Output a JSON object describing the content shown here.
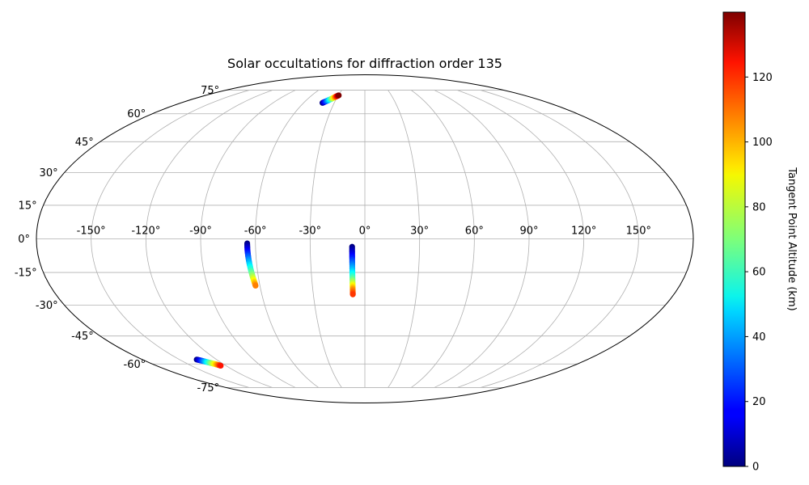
{
  "chart_data": {
    "type": "scatter",
    "projection": "mollweide",
    "title": "Solar occultations for diffraction order 135",
    "xlabel": "",
    "ylabel": "",
    "grid": true,
    "x_ticks": [
      -150,
      -120,
      -90,
      -60,
      -30,
      0,
      30,
      60,
      90,
      120,
      150
    ],
    "x_tick_labels": [
      "-150°",
      "-120°",
      "-90°",
      "-60°",
      "-30°",
      "0°",
      "30°",
      "60°",
      "90°",
      "120°",
      "150°"
    ],
    "y_ticks": [
      -75,
      -60,
      -45,
      -30,
      -15,
      0,
      15,
      30,
      45,
      60,
      75
    ],
    "y_tick_labels": [
      "-75°",
      "-60°",
      "-45°",
      "-30°",
      "-15°",
      "0°",
      "15°",
      "30°",
      "45°",
      "60°",
      "75°"
    ],
    "xlim": [
      -180,
      180
    ],
    "ylim": [
      -90,
      90
    ],
    "colorbar": {
      "label": "Tangent Point Altitude (km)",
      "colormap": "jet",
      "range": [
        0,
        140
      ],
      "ticks": [
        0,
        20,
        40,
        60,
        80,
        100,
        120
      ],
      "tick_labels": [
        "0",
        "20",
        "40",
        "60",
        "80",
        "100",
        "120"
      ]
    },
    "series": [
      {
        "points": [
          {
            "lon": -41.5,
            "lat": 66.5,
            "alt": 0
          },
          {
            "lon": -39.5,
            "lat": 67.3,
            "alt": 20
          },
          {
            "lon": -37.5,
            "lat": 68.1,
            "alt": 40
          },
          {
            "lon": -35.5,
            "lat": 68.9,
            "alt": 60
          },
          {
            "lon": -34.0,
            "lat": 69.6,
            "alt": 80
          },
          {
            "lon": -32.5,
            "lat": 70.3,
            "alt": 100
          },
          {
            "lon": -31.0,
            "lat": 70.9,
            "alt": 120
          },
          {
            "lon": -29.5,
            "lat": 71.4,
            "alt": 140
          }
        ]
      },
      {
        "points": [
          {
            "lon": -64.5,
            "lat": -2.0,
            "alt": 0
          },
          {
            "lon": -64.5,
            "lat": -5.0,
            "alt": 15
          },
          {
            "lon": -64.3,
            "lat": -8.0,
            "alt": 30
          },
          {
            "lon": -64.0,
            "lat": -11.0,
            "alt": 45
          },
          {
            "lon": -63.6,
            "lat": -14.0,
            "alt": 60
          },
          {
            "lon": -63.2,
            "lat": -16.8,
            "alt": 75
          },
          {
            "lon": -62.8,
            "lat": -19.0,
            "alt": 90
          },
          {
            "lon": -62.5,
            "lat": -21.0,
            "alt": 105
          }
        ]
      },
      {
        "points": [
          {
            "lon": -7.0,
            "lat": -3.5,
            "alt": 0
          },
          {
            "lon": -7.0,
            "lat": -7.0,
            "alt": 15
          },
          {
            "lon": -7.0,
            "lat": -10.5,
            "alt": 30
          },
          {
            "lon": -7.0,
            "lat": -14.0,
            "alt": 45
          },
          {
            "lon": -7.0,
            "lat": -17.0,
            "alt": 60
          },
          {
            "lon": -7.0,
            "lat": -20.0,
            "alt": 80
          },
          {
            "lon": -7.0,
            "lat": -22.5,
            "alt": 100
          },
          {
            "lon": -7.0,
            "lat": -25.0,
            "alt": 115
          }
        ]
      },
      {
        "points": [
          {
            "lon": -136.0,
            "lat": -57.5,
            "alt": 0
          },
          {
            "lon": -134.0,
            "lat": -58.0,
            "alt": 20
          },
          {
            "lon": -132.0,
            "lat": -58.6,
            "alt": 40
          },
          {
            "lon": -130.0,
            "lat": -59.2,
            "alt": 60
          },
          {
            "lon": -128.0,
            "lat": -59.8,
            "alt": 80
          },
          {
            "lon": -126.0,
            "lat": -60.4,
            "alt": 100
          },
          {
            "lon": -124.5,
            "lat": -61.0,
            "alt": 120
          }
        ]
      }
    ]
  }
}
